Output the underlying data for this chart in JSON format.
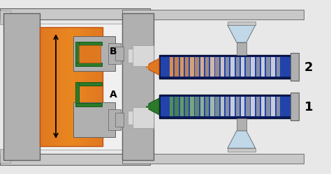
{
  "bg_color": "#e8e8e8",
  "gray_plate": "#b0b0b0",
  "gray_light": "#c8c8c8",
  "gray_mid": "#909090",
  "gray_dark": "#606060",
  "gray_inner": "#d8d8d8",
  "white_color": "#f0f0f0",
  "orange_color": "#e07820",
  "orange_dark": "#c05010",
  "green_color": "#2a7a2a",
  "green_light": "#40a040",
  "blue_dark": "#0a1a5e",
  "blue_mid": "#1a3488",
  "blue_light": "#2244aa",
  "hopper_color": "#c0d8e8",
  "screw_light": "#c8ccd8",
  "screw_dark": "#8890a8",
  "label_A": "A",
  "label_B": "B",
  "label_1": "1",
  "label_2": "2",
  "fig_w": 4.74,
  "fig_h": 2.51,
  "dpi": 100
}
